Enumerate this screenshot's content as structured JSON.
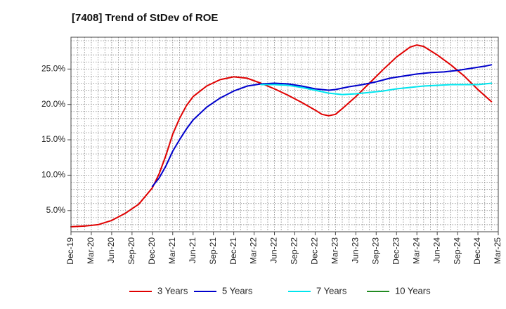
{
  "chart_data": {
    "type": "line",
    "title": "[7408]  Trend of StDev of ROE",
    "xlabel": "",
    "ylabel": "",
    "ylim": [
      2.0,
      29.5
    ],
    "x_tick_labels": [
      "Dec-19",
      "Mar-20",
      "Jun-20",
      "Sep-20",
      "Dec-20",
      "Mar-21",
      "Jun-21",
      "Sep-21",
      "Dec-21",
      "Mar-22",
      "Jun-22",
      "Sep-22",
      "Dec-22",
      "Mar-23",
      "Jun-23",
      "Sep-23",
      "Dec-23",
      "Mar-24",
      "Jun-24",
      "Sep-24",
      "Dec-24",
      "Mar-25"
    ],
    "y_ticks": [
      5.0,
      10.0,
      15.0,
      20.0,
      25.0
    ],
    "y_tick_labels": [
      "5.0%",
      "10.0%",
      "15.0%",
      "20.0%",
      "25.0%"
    ],
    "grid": true,
    "legend_position": "bottom",
    "series": [
      {
        "name": "3 Years",
        "color": "#e00000",
        "points": [
          [
            "Dec-19",
            2.7
          ],
          [
            "Feb-20",
            2.8
          ],
          [
            "Apr-20",
            3.0
          ],
          [
            "Jun-20",
            3.6
          ],
          [
            "Aug-20",
            4.6
          ],
          [
            "Oct-20",
            5.9
          ],
          [
            "Dec-20",
            8.2
          ],
          [
            "Jan-21",
            10.2
          ],
          [
            "Feb-21",
            12.8
          ],
          [
            "Mar-21",
            15.8
          ],
          [
            "Apr-21",
            18.0
          ],
          [
            "May-21",
            19.8
          ],
          [
            "Jun-21",
            21.1
          ],
          [
            "Aug-21",
            22.6
          ],
          [
            "Oct-21",
            23.5
          ],
          [
            "Dec-21",
            23.9
          ],
          [
            "Feb-22",
            23.7
          ],
          [
            "Apr-22",
            23.0
          ],
          [
            "Jun-22",
            22.2
          ],
          [
            "Aug-22",
            21.3
          ],
          [
            "Oct-22",
            20.3
          ],
          [
            "Dec-22",
            19.2
          ],
          [
            "Jan-23",
            18.6
          ],
          [
            "Feb-23",
            18.4
          ],
          [
            "Mar-23",
            18.6
          ],
          [
            "Apr-23",
            19.4
          ],
          [
            "Jun-23",
            21.1
          ],
          [
            "Aug-23",
            23.0
          ],
          [
            "Oct-23",
            24.9
          ],
          [
            "Dec-23",
            26.7
          ],
          [
            "Feb-24",
            28.1
          ],
          [
            "Mar-24",
            28.4
          ],
          [
            "Apr-24",
            28.2
          ],
          [
            "Jun-24",
            27.0
          ],
          [
            "Aug-24",
            25.6
          ],
          [
            "Oct-24",
            24.0
          ],
          [
            "Dec-24",
            22.1
          ],
          [
            "Feb-25",
            20.4
          ]
        ]
      },
      {
        "name": "5 Years",
        "color": "#0000cc",
        "points": [
          [
            "Dec-20",
            8.4
          ],
          [
            "Jan-21",
            9.6
          ],
          [
            "Feb-21",
            11.3
          ],
          [
            "Mar-21",
            13.4
          ],
          [
            "Apr-21",
            15.0
          ],
          [
            "May-21",
            16.5
          ],
          [
            "Jun-21",
            17.8
          ],
          [
            "Aug-21",
            19.6
          ],
          [
            "Oct-21",
            20.9
          ],
          [
            "Dec-21",
            21.9
          ],
          [
            "Feb-22",
            22.6
          ],
          [
            "Apr-22",
            22.9
          ],
          [
            "Jun-22",
            23.0
          ],
          [
            "Aug-22",
            22.9
          ],
          [
            "Oct-22",
            22.6
          ],
          [
            "Dec-22",
            22.2
          ],
          [
            "Feb-23",
            22.0
          ],
          [
            "Mar-23",
            22.1
          ],
          [
            "May-23",
            22.5
          ],
          [
            "Jul-23",
            22.8
          ],
          [
            "Sep-23",
            23.2
          ],
          [
            "Nov-23",
            23.7
          ],
          [
            "Jan-24",
            24.0
          ],
          [
            "Mar-24",
            24.3
          ],
          [
            "May-24",
            24.5
          ],
          [
            "Jul-24",
            24.6
          ],
          [
            "Sep-24",
            24.8
          ],
          [
            "Nov-24",
            25.1
          ],
          [
            "Jan-25",
            25.4
          ],
          [
            "Feb-25",
            25.6
          ]
        ]
      },
      {
        "name": "7 Years",
        "color": "#00e5ee",
        "points": [
          [
            "Apr-22",
            22.8
          ],
          [
            "Jun-22",
            22.8
          ],
          [
            "Aug-22",
            22.7
          ],
          [
            "Oct-22",
            22.4
          ],
          [
            "Dec-22",
            22.0
          ],
          [
            "Feb-23",
            21.6
          ],
          [
            "Apr-23",
            21.4
          ],
          [
            "Jun-23",
            21.5
          ],
          [
            "Aug-23",
            21.7
          ],
          [
            "Oct-23",
            21.9
          ],
          [
            "Dec-23",
            22.2
          ],
          [
            "Feb-24",
            22.4
          ],
          [
            "Apr-24",
            22.6
          ],
          [
            "Jun-24",
            22.7
          ],
          [
            "Aug-24",
            22.8
          ],
          [
            "Oct-24",
            22.8
          ],
          [
            "Dec-24",
            22.8
          ],
          [
            "Feb-25",
            23.0
          ]
        ]
      },
      {
        "name": "10 Years",
        "color": "#228b22",
        "points": []
      }
    ]
  }
}
